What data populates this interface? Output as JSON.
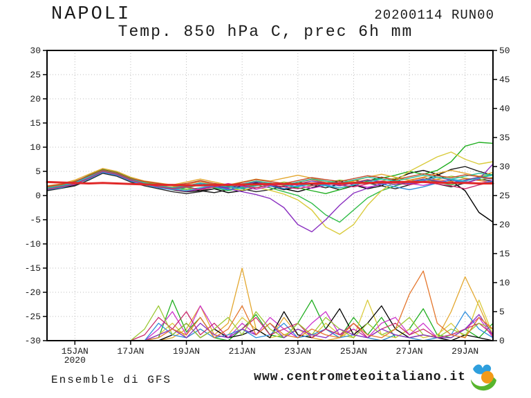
{
  "header": {
    "station": "NAPOLI",
    "run": "20200114 RUN00",
    "subtitle": "Temp. 850 hPa C, prec 6h mm"
  },
  "footer": {
    "model": "Ensemble di GFS",
    "site": "www.centrometeoitaliano.it"
  },
  "colors": {
    "frame": "#000000",
    "grid": "#bcbcbc",
    "axis_text": "#1a1a1a",
    "control_red": "#e02828"
  },
  "chart_data": {
    "type": "line",
    "title": "NAPOLI",
    "subtitle": "Temp. 850 hPa C, prec 6h mm",
    "run": "20200114 RUN00",
    "legend": "none",
    "grid": "dotted",
    "x_axis": {
      "total_days": 16,
      "start_date": "14JAN2020",
      "ticks": [
        {
          "day": 1,
          "label": "15JAN",
          "sub": "2020"
        },
        {
          "day": 3,
          "label": "17JAN"
        },
        {
          "day": 5,
          "label": "19JAN"
        },
        {
          "day": 7,
          "label": "21JAN"
        },
        {
          "day": 9,
          "label": "23JAN"
        },
        {
          "day": 11,
          "label": "25JAN"
        },
        {
          "day": 13,
          "label": "27JAN"
        },
        {
          "day": 15,
          "label": "29JAN"
        }
      ]
    },
    "y_left": {
      "min": -30,
      "max": 30,
      "step": 5,
      "unit": "C",
      "role": "temperature 850 hPa"
    },
    "y_right": {
      "min": 0,
      "max": 50,
      "step": 5,
      "unit": "mm",
      "role": "precipitation 6h"
    },
    "x_step_days": 0.5,
    "temperature_series": [
      {
        "name": "ens-black-a",
        "color": "#000000",
        "width": 1.4,
        "values": [
          1.2,
          1.6,
          2.2,
          3.6,
          5.0,
          4.4,
          3.0,
          2.4,
          2.0,
          1.2,
          0.8,
          1.0,
          1.4,
          0.6,
          1.0,
          1.6,
          2.2,
          1.4,
          0.8,
          1.6,
          2.4,
          3.0,
          2.2,
          1.4,
          2.0,
          3.4,
          4.6,
          5.2,
          4.4,
          3.0,
          1.0,
          -3.5,
          -5.5
        ]
      },
      {
        "name": "ens-black-b",
        "color": "#141414",
        "width": 1.4,
        "values": [
          1.4,
          1.8,
          2.6,
          4.0,
          5.2,
          4.6,
          3.4,
          2.6,
          1.8,
          1.4,
          1.8,
          1.0,
          0.6,
          1.2,
          2.0,
          2.6,
          2.0,
          1.2,
          1.8,
          2.6,
          2.0,
          1.2,
          2.0,
          3.0,
          3.8,
          3.2,
          2.4,
          3.2,
          4.2,
          5.4,
          6.0,
          5.0,
          4.2
        ]
      },
      {
        "name": "ens-black-c",
        "color": "#262626",
        "width": 1.4,
        "values": [
          1.0,
          1.5,
          2.0,
          3.2,
          4.6,
          4.0,
          2.8,
          2.0,
          1.4,
          0.8,
          0.4,
          0.8,
          1.4,
          2.0,
          1.4,
          0.8,
          1.2,
          2.0,
          2.8,
          2.2,
          1.6,
          2.4,
          3.2,
          2.6,
          2.0,
          1.4,
          2.2,
          3.0,
          2.4,
          1.8,
          2.6,
          3.4,
          3.0
        ]
      },
      {
        "name": "ens-green-a",
        "color": "#1fae1f",
        "width": 1.4,
        "values": [
          1.6,
          2.0,
          2.8,
          4.2,
          5.4,
          4.8,
          3.6,
          2.8,
          2.2,
          1.6,
          1.2,
          1.6,
          2.2,
          1.8,
          1.4,
          2.0,
          2.6,
          2.2,
          1.6,
          1.0,
          0.4,
          1.2,
          2.2,
          3.0,
          3.6,
          4.2,
          5.0,
          4.4,
          5.2,
          7.0,
          10.2,
          11.0,
          10.8
        ]
      },
      {
        "name": "ens-green-b",
        "color": "#2ebc46",
        "width": 1.4,
        "values": [
          1.4,
          1.9,
          2.4,
          3.8,
          5.0,
          4.4,
          3.2,
          2.4,
          1.8,
          1.2,
          1.6,
          2.2,
          1.6,
          1.0,
          1.6,
          2.2,
          1.6,
          0.8,
          0.0,
          -1.6,
          -4.0,
          -5.5,
          -3.0,
          -0.5,
          1.0,
          2.0,
          2.8,
          3.4,
          2.8,
          2.2,
          3.0,
          3.8,
          4.4
        ]
      },
      {
        "name": "ens-olive",
        "color": "#9ac832",
        "width": 1.4,
        "values": [
          1.8,
          2.2,
          3.0,
          4.0,
          5.2,
          4.6,
          3.4,
          2.8,
          2.4,
          2.0,
          1.6,
          1.2,
          1.8,
          2.4,
          2.0,
          1.6,
          2.2,
          2.8,
          2.4,
          2.0,
          2.6,
          3.2,
          2.8,
          2.4,
          3.0,
          3.6,
          3.2,
          2.8,
          3.4,
          4.0,
          3.6,
          3.2,
          3.8
        ]
      },
      {
        "name": "ens-yellow",
        "color": "#d9cb3c",
        "width": 1.4,
        "values": [
          1.5,
          1.9,
          2.5,
          3.9,
          5.1,
          4.5,
          3.3,
          2.5,
          1.9,
          1.5,
          1.1,
          1.5,
          2.1,
          1.5,
          1.1,
          1.7,
          1.1,
          0.3,
          -0.9,
          -3.0,
          -6.5,
          -8.0,
          -6.0,
          -2.0,
          1.0,
          3.0,
          5.0,
          6.5,
          8.0,
          9.0,
          7.5,
          6.5,
          7.0
        ]
      },
      {
        "name": "ens-gold",
        "color": "#e3a72f",
        "width": 1.4,
        "values": [
          2.0,
          2.4,
          3.2,
          4.4,
          5.6,
          5.0,
          3.8,
          3.0,
          2.6,
          2.2,
          2.8,
          3.4,
          2.8,
          2.2,
          2.8,
          3.4,
          3.0,
          3.6,
          4.2,
          3.6,
          3.0,
          2.4,
          3.0,
          3.8,
          4.4,
          3.8,
          3.2,
          3.8,
          4.6,
          5.2,
          4.6,
          4.0,
          4.8
        ]
      },
      {
        "name": "ens-orange",
        "color": "#e4762c",
        "width": 1.4,
        "values": [
          1.7,
          2.1,
          2.7,
          3.7,
          4.9,
          4.3,
          3.1,
          2.5,
          2.1,
          1.7,
          2.3,
          2.9,
          2.3,
          1.7,
          2.3,
          2.9,
          2.5,
          2.1,
          2.7,
          3.3,
          2.7,
          2.1,
          2.7,
          3.3,
          2.9,
          2.5,
          3.1,
          3.7,
          3.3,
          2.9,
          3.5,
          3.1,
          2.7
        ]
      },
      {
        "name": "ens-magenta",
        "color": "#cc33cc",
        "width": 1.4,
        "values": [
          1.3,
          1.7,
          2.3,
          3.5,
          4.9,
          4.3,
          3.1,
          2.3,
          1.7,
          1.3,
          0.9,
          1.3,
          1.9,
          2.5,
          1.9,
          1.3,
          1.9,
          2.5,
          2.1,
          1.5,
          2.1,
          2.7,
          2.3,
          1.7,
          2.3,
          2.9,
          2.5,
          2.1,
          2.7,
          3.3,
          2.9,
          2.5,
          3.1
        ]
      },
      {
        "name": "ens-purple",
        "color": "#8a2fc0",
        "width": 1.4,
        "values": [
          1.5,
          2.0,
          2.6,
          3.8,
          5.2,
          4.6,
          3.4,
          2.6,
          2.0,
          1.4,
          1.0,
          1.4,
          2.0,
          1.4,
          0.8,
          0.2,
          -0.6,
          -2.5,
          -6.0,
          -7.5,
          -5.0,
          -2.0,
          0.5,
          1.5,
          2.5,
          3.0,
          2.4,
          3.0,
          3.8,
          3.2,
          2.6,
          3.4,
          6.5
        ]
      },
      {
        "name": "ens-violet",
        "color": "#6b35a8",
        "width": 1.4,
        "values": [
          1.6,
          2.0,
          2.4,
          3.6,
          4.8,
          4.2,
          3.0,
          2.4,
          2.0,
          1.6,
          2.0,
          2.6,
          2.0,
          1.6,
          2.2,
          2.8,
          2.2,
          1.8,
          2.4,
          3.0,
          2.6,
          2.0,
          2.6,
          3.2,
          2.8,
          2.2,
          2.8,
          3.4,
          3.0,
          2.6,
          3.2,
          3.8,
          3.4
        ]
      },
      {
        "name": "ens-blue",
        "color": "#2f8fdd",
        "width": 1.4,
        "values": [
          1.2,
          1.6,
          2.4,
          3.4,
          4.8,
          4.2,
          3.0,
          2.2,
          1.6,
          1.2,
          1.8,
          2.4,
          1.8,
          1.2,
          1.8,
          2.4,
          2.0,
          1.4,
          2.0,
          2.6,
          2.2,
          1.6,
          2.2,
          2.8,
          2.4,
          1.8,
          1.2,
          1.8,
          2.6,
          3.2,
          2.8,
          2.4,
          3.0
        ]
      },
      {
        "name": "ens-cyan",
        "color": "#2fb7d0",
        "width": 1.4,
        "values": [
          1.4,
          1.8,
          2.6,
          3.8,
          5.0,
          4.4,
          3.2,
          2.4,
          1.8,
          1.4,
          1.0,
          1.6,
          2.2,
          1.8,
          1.4,
          2.0,
          2.6,
          2.2,
          1.8,
          2.4,
          2.0,
          1.6,
          2.2,
          2.8,
          3.4,
          3.0,
          2.6,
          3.2,
          3.8,
          3.4,
          3.0,
          3.6,
          4.2
        ]
      },
      {
        "name": "ens-teal",
        "color": "#2ab99e",
        "width": 1.4,
        "values": [
          1.6,
          2.0,
          2.8,
          4.0,
          5.2,
          4.6,
          3.4,
          2.6,
          2.0,
          1.6,
          2.0,
          2.6,
          2.2,
          1.8,
          2.4,
          3.0,
          2.6,
          2.2,
          2.8,
          3.4,
          3.0,
          2.6,
          3.2,
          3.8,
          3.4,
          3.0,
          3.6,
          4.2,
          3.8,
          3.4,
          4.0,
          4.6,
          4.2
        ]
      },
      {
        "name": "ens-crimson",
        "color": "#c92a6d",
        "width": 1.4,
        "values": [
          1.3,
          1.8,
          2.4,
          3.6,
          5.0,
          4.4,
          3.2,
          2.4,
          1.8,
          1.4,
          1.8,
          1.2,
          1.8,
          2.4,
          2.0,
          1.6,
          2.2,
          1.8,
          1.4,
          2.0,
          2.6,
          2.2,
          1.8,
          2.4,
          3.0,
          2.6,
          2.2,
          2.8,
          2.4,
          2.0,
          1.4,
          2.2,
          2.8
        ]
      },
      {
        "name": "ens-rust",
        "color": "#c0482a",
        "width": 1.4,
        "values": [
          1.9,
          2.3,
          2.9,
          4.1,
          5.3,
          4.7,
          3.5,
          2.9,
          2.5,
          2.1,
          2.5,
          3.1,
          2.5,
          2.1,
          2.7,
          3.3,
          2.9,
          2.5,
          3.1,
          3.7,
          3.3,
          2.9,
          3.5,
          4.1,
          3.7,
          3.3,
          3.9,
          4.5,
          4.1,
          3.7,
          4.3,
          3.9,
          3.5
        ]
      },
      {
        "name": "control",
        "color": "#e02828",
        "width": 3.0,
        "values": [
          2.8,
          2.7,
          2.6,
          2.5,
          2.6,
          2.5,
          2.4,
          2.3,
          2.2,
          2.2,
          2.1,
          2.1,
          2.2,
          2.2,
          2.3,
          2.3,
          2.4,
          2.4,
          2.4,
          2.5,
          2.5,
          2.5,
          2.6,
          2.6,
          2.7,
          2.8,
          2.8,
          2.8,
          2.7,
          2.6,
          2.6,
          2.5,
          2.5
        ]
      }
    ],
    "precipitation_series": [
      {
        "name": "prec-gold",
        "color": "#e3a72f",
        "width": 1.3,
        "values": [
          0,
          0,
          0,
          0,
          0,
          0,
          0,
          0,
          0,
          0.5,
          2,
          6,
          1,
          3,
          12.5,
          2,
          0.5,
          4,
          1,
          0.5,
          0,
          0.5,
          2,
          0.5,
          0,
          1,
          0.5,
          0,
          0.5,
          5,
          11,
          6,
          0.5
        ]
      },
      {
        "name": "prec-green",
        "color": "#1fae1f",
        "width": 1.3,
        "values": [
          0,
          0,
          0,
          0,
          0,
          0,
          0,
          0,
          0.5,
          7,
          1.5,
          4,
          0.5,
          0,
          2,
          4.5,
          1,
          0.5,
          3,
          7,
          2,
          0.5,
          4,
          1,
          4,
          0.5,
          2,
          5.5,
          1,
          0.5,
          2,
          0.5,
          3
        ]
      },
      {
        "name": "prec-yellow",
        "color": "#d9cb3c",
        "width": 1.3,
        "values": [
          0,
          0,
          0,
          0,
          0,
          0,
          0,
          0,
          1,
          3,
          0.5,
          2,
          0.5,
          1,
          4,
          2,
          0.5,
          1,
          2,
          0.5,
          3,
          1,
          0.5,
          7,
          1,
          0.5,
          2,
          0.5,
          1,
          3,
          0.5,
          7,
          1
        ]
      },
      {
        "name": "prec-magenta",
        "color": "#cc33cc",
        "width": 1.3,
        "values": [
          0,
          0,
          0,
          0,
          0,
          0,
          0,
          0,
          2,
          5,
          1,
          6,
          2,
          0.5,
          3,
          1,
          4,
          2,
          0.5,
          3,
          5,
          1,
          2,
          0.5,
          3,
          4,
          1,
          3,
          0.5,
          1,
          2,
          4,
          0.5
        ]
      },
      {
        "name": "prec-black",
        "color": "#000000",
        "width": 1.3,
        "values": [
          0,
          0,
          0,
          0,
          0,
          0,
          0,
          0,
          0,
          1,
          3,
          0.5,
          2,
          0.5,
          1,
          2,
          0.5,
          5,
          1,
          0.5,
          2,
          5.5,
          1,
          3,
          6,
          2,
          0.5,
          1,
          0.5,
          0,
          1,
          0.5,
          0
        ]
      },
      {
        "name": "prec-blue",
        "color": "#2f8fdd",
        "width": 1.3,
        "values": [
          0,
          0,
          0,
          0,
          0,
          0,
          0,
          0,
          3,
          1,
          0.5,
          2,
          0.5,
          1,
          2,
          0.5,
          1,
          3,
          0.5,
          1,
          2,
          0.5,
          1,
          0.5,
          0,
          1,
          0.5,
          0,
          0.5,
          1,
          5,
          2,
          0.5
        ]
      },
      {
        "name": "prec-crimson",
        "color": "#c92a6d",
        "width": 1.3,
        "values": [
          0,
          0,
          0,
          0,
          0,
          0,
          0,
          1,
          4,
          2,
          5,
          1,
          3,
          0.5,
          2,
          4,
          1,
          2,
          3,
          0.5,
          2,
          1,
          3,
          0.5,
          2,
          3,
          1,
          2,
          0.5,
          1,
          2,
          3,
          1
        ]
      },
      {
        "name": "prec-olive",
        "color": "#9ac832",
        "width": 1.3,
        "values": [
          0,
          0,
          0,
          0,
          0,
          0,
          0,
          2,
          6,
          1,
          3,
          0.5,
          2,
          4,
          1,
          5,
          2,
          0.5,
          3,
          1,
          4,
          2,
          0.5,
          3,
          1,
          2,
          4,
          1,
          0.5,
          2,
          1,
          3,
          2
        ]
      },
      {
        "name": "prec-purple",
        "color": "#8a2fc0",
        "width": 1.3,
        "values": [
          0,
          0,
          0,
          0,
          0,
          0,
          0,
          0,
          1,
          2,
          0.5,
          3,
          1,
          0.5,
          2,
          1,
          3,
          0.5,
          2,
          1,
          0.5,
          2,
          1,
          0.5,
          2,
          1,
          0.5,
          1,
          0.5,
          0.5,
          2,
          4.5,
          1
        ]
      },
      {
        "name": "prec-orange",
        "color": "#e4762c",
        "width": 1.3,
        "values": [
          0,
          0,
          0,
          0,
          0,
          0,
          0,
          0,
          0.5,
          2,
          1,
          4,
          0.5,
          2,
          6,
          1,
          3,
          1,
          0.5,
          2,
          1,
          0.5,
          3,
          1,
          0.5,
          2,
          8,
          12,
          3,
          1,
          0.5,
          4,
          2
        ]
      }
    ]
  }
}
